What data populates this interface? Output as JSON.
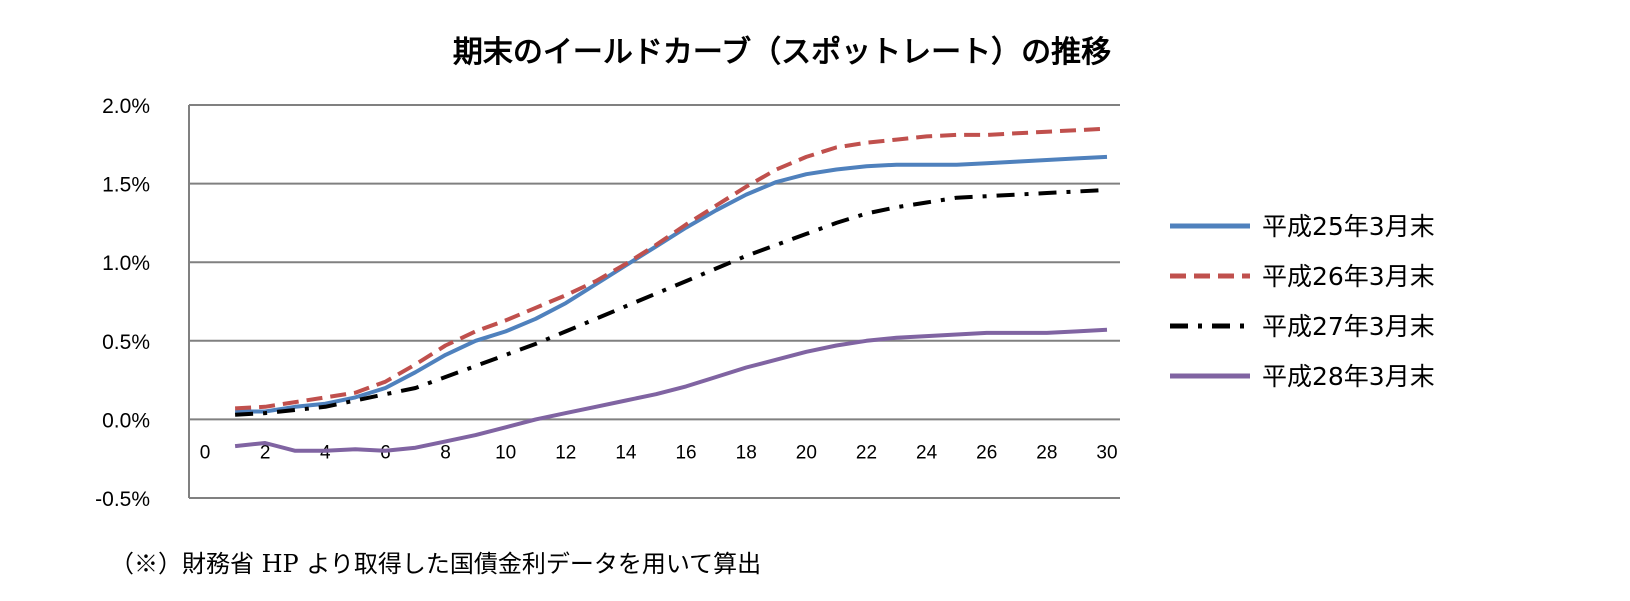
{
  "chart_data": {
    "type": "line",
    "title": "期末のイールドカーブ（スポットレート）の推移",
    "xlabel": "",
    "ylabel": "",
    "x_ticks": [
      "0",
      "2",
      "4",
      "6",
      "8",
      "10",
      "12",
      "14",
      "16",
      "18",
      "20",
      "22",
      "24",
      "26",
      "28",
      "30"
    ],
    "y_ticks": [
      "2.0%",
      "1.5%",
      "1.0%",
      "0.5%",
      "0.0%",
      "-0.5%"
    ],
    "xlim": [
      0,
      30
    ],
    "ylim": [
      -0.5,
      2.0
    ],
    "grid": "horizontal",
    "legend_position": "right",
    "x": [
      1,
      2,
      3,
      4,
      5,
      6,
      7,
      8,
      9,
      10,
      11,
      12,
      13,
      14,
      15,
      16,
      17,
      18,
      19,
      20,
      21,
      22,
      23,
      24,
      25,
      26,
      27,
      28,
      29,
      30
    ],
    "series": [
      {
        "name": "平成25年3月末",
        "color": "#4f81bd",
        "dash": "solid",
        "values": [
          0.05,
          0.05,
          0.08,
          0.1,
          0.14,
          0.2,
          0.3,
          0.41,
          0.5,
          0.56,
          0.64,
          0.74,
          0.86,
          0.98,
          1.1,
          1.22,
          1.33,
          1.43,
          1.51,
          1.56,
          1.59,
          1.61,
          1.62,
          1.62,
          1.62,
          1.63,
          1.64,
          1.65,
          1.66,
          1.67
        ]
      },
      {
        "name": "平成26年3月末",
        "color": "#c0504d",
        "dash": "dashed",
        "values": [
          0.07,
          0.08,
          0.11,
          0.14,
          0.17,
          0.24,
          0.35,
          0.47,
          0.56,
          0.63,
          0.71,
          0.79,
          0.88,
          0.99,
          1.11,
          1.24,
          1.36,
          1.48,
          1.59,
          1.67,
          1.73,
          1.76,
          1.78,
          1.8,
          1.81,
          1.81,
          1.82,
          1.83,
          1.84,
          1.85
        ]
      },
      {
        "name": "平成27年3月末",
        "color": "#000000",
        "dash": "dashdot",
        "values": [
          0.03,
          0.04,
          0.06,
          0.08,
          0.12,
          0.16,
          0.2,
          0.27,
          0.34,
          0.41,
          0.48,
          0.56,
          0.64,
          0.72,
          0.8,
          0.88,
          0.96,
          1.04,
          1.11,
          1.18,
          1.25,
          1.31,
          1.35,
          1.38,
          1.41,
          1.42,
          1.43,
          1.44,
          1.45,
          1.46
        ]
      },
      {
        "name": "平成28年3月末",
        "color": "#8064a2",
        "dash": "solid",
        "values": [
          -0.17,
          -0.15,
          -0.2,
          -0.2,
          -0.19,
          -0.2,
          -0.18,
          -0.14,
          -0.1,
          -0.05,
          0.0,
          0.04,
          0.08,
          0.12,
          0.16,
          0.21,
          0.27,
          0.33,
          0.38,
          0.43,
          0.47,
          0.5,
          0.52,
          0.53,
          0.54,
          0.55,
          0.55,
          0.55,
          0.56,
          0.57
        ]
      }
    ],
    "note": "（※）財務省 HP より取得した国債金利データを用いて算出"
  }
}
